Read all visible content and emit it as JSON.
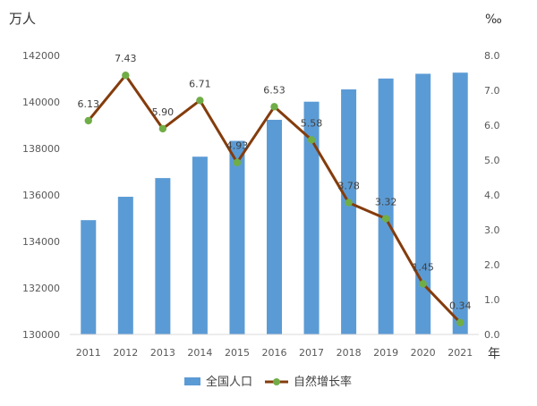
{
  "chart_data": {
    "type": "bar",
    "categories": [
      "2011",
      "2012",
      "2013",
      "2014",
      "2015",
      "2016",
      "2017",
      "2018",
      "2019",
      "2020",
      "2021"
    ],
    "series": [
      {
        "name": "全国人口",
        "kind": "bar",
        "axis": "left",
        "color": "#5B9BD5",
        "values": [
          134916,
          135922,
          136726,
          137646,
          138326,
          139232,
          140011,
          140541,
          141008,
          141212,
          141260
        ]
      },
      {
        "name": "自然增长率",
        "kind": "line",
        "axis": "right",
        "color": "#843C0C",
        "marker_color": "#70AD47",
        "values": [
          6.13,
          7.43,
          5.9,
          6.71,
          4.93,
          6.53,
          5.58,
          3.78,
          3.32,
          1.45,
          0.34
        ],
        "labels": [
          "6.13",
          "7.43",
          "5.90",
          "6.71",
          "4.93",
          "6.53",
          "5.58",
          "3.78",
          "3.32",
          "1.45",
          "0.34"
        ]
      }
    ],
    "y_left": {
      "unit": "万人",
      "ylim": [
        130000,
        142000
      ],
      "ticks": [
        "130000",
        "132000",
        "134000",
        "136000",
        "138000",
        "140000",
        "142000"
      ]
    },
    "y_right": {
      "unit": "‰",
      "ylim": [
        0,
        8
      ],
      "ticks": [
        "0.0",
        "1.0",
        "2.0",
        "3.0",
        "4.0",
        "5.0",
        "6.0",
        "7.0",
        "8.0"
      ]
    },
    "x_unit": "年",
    "legend_position": "bottom",
    "grid": false
  }
}
